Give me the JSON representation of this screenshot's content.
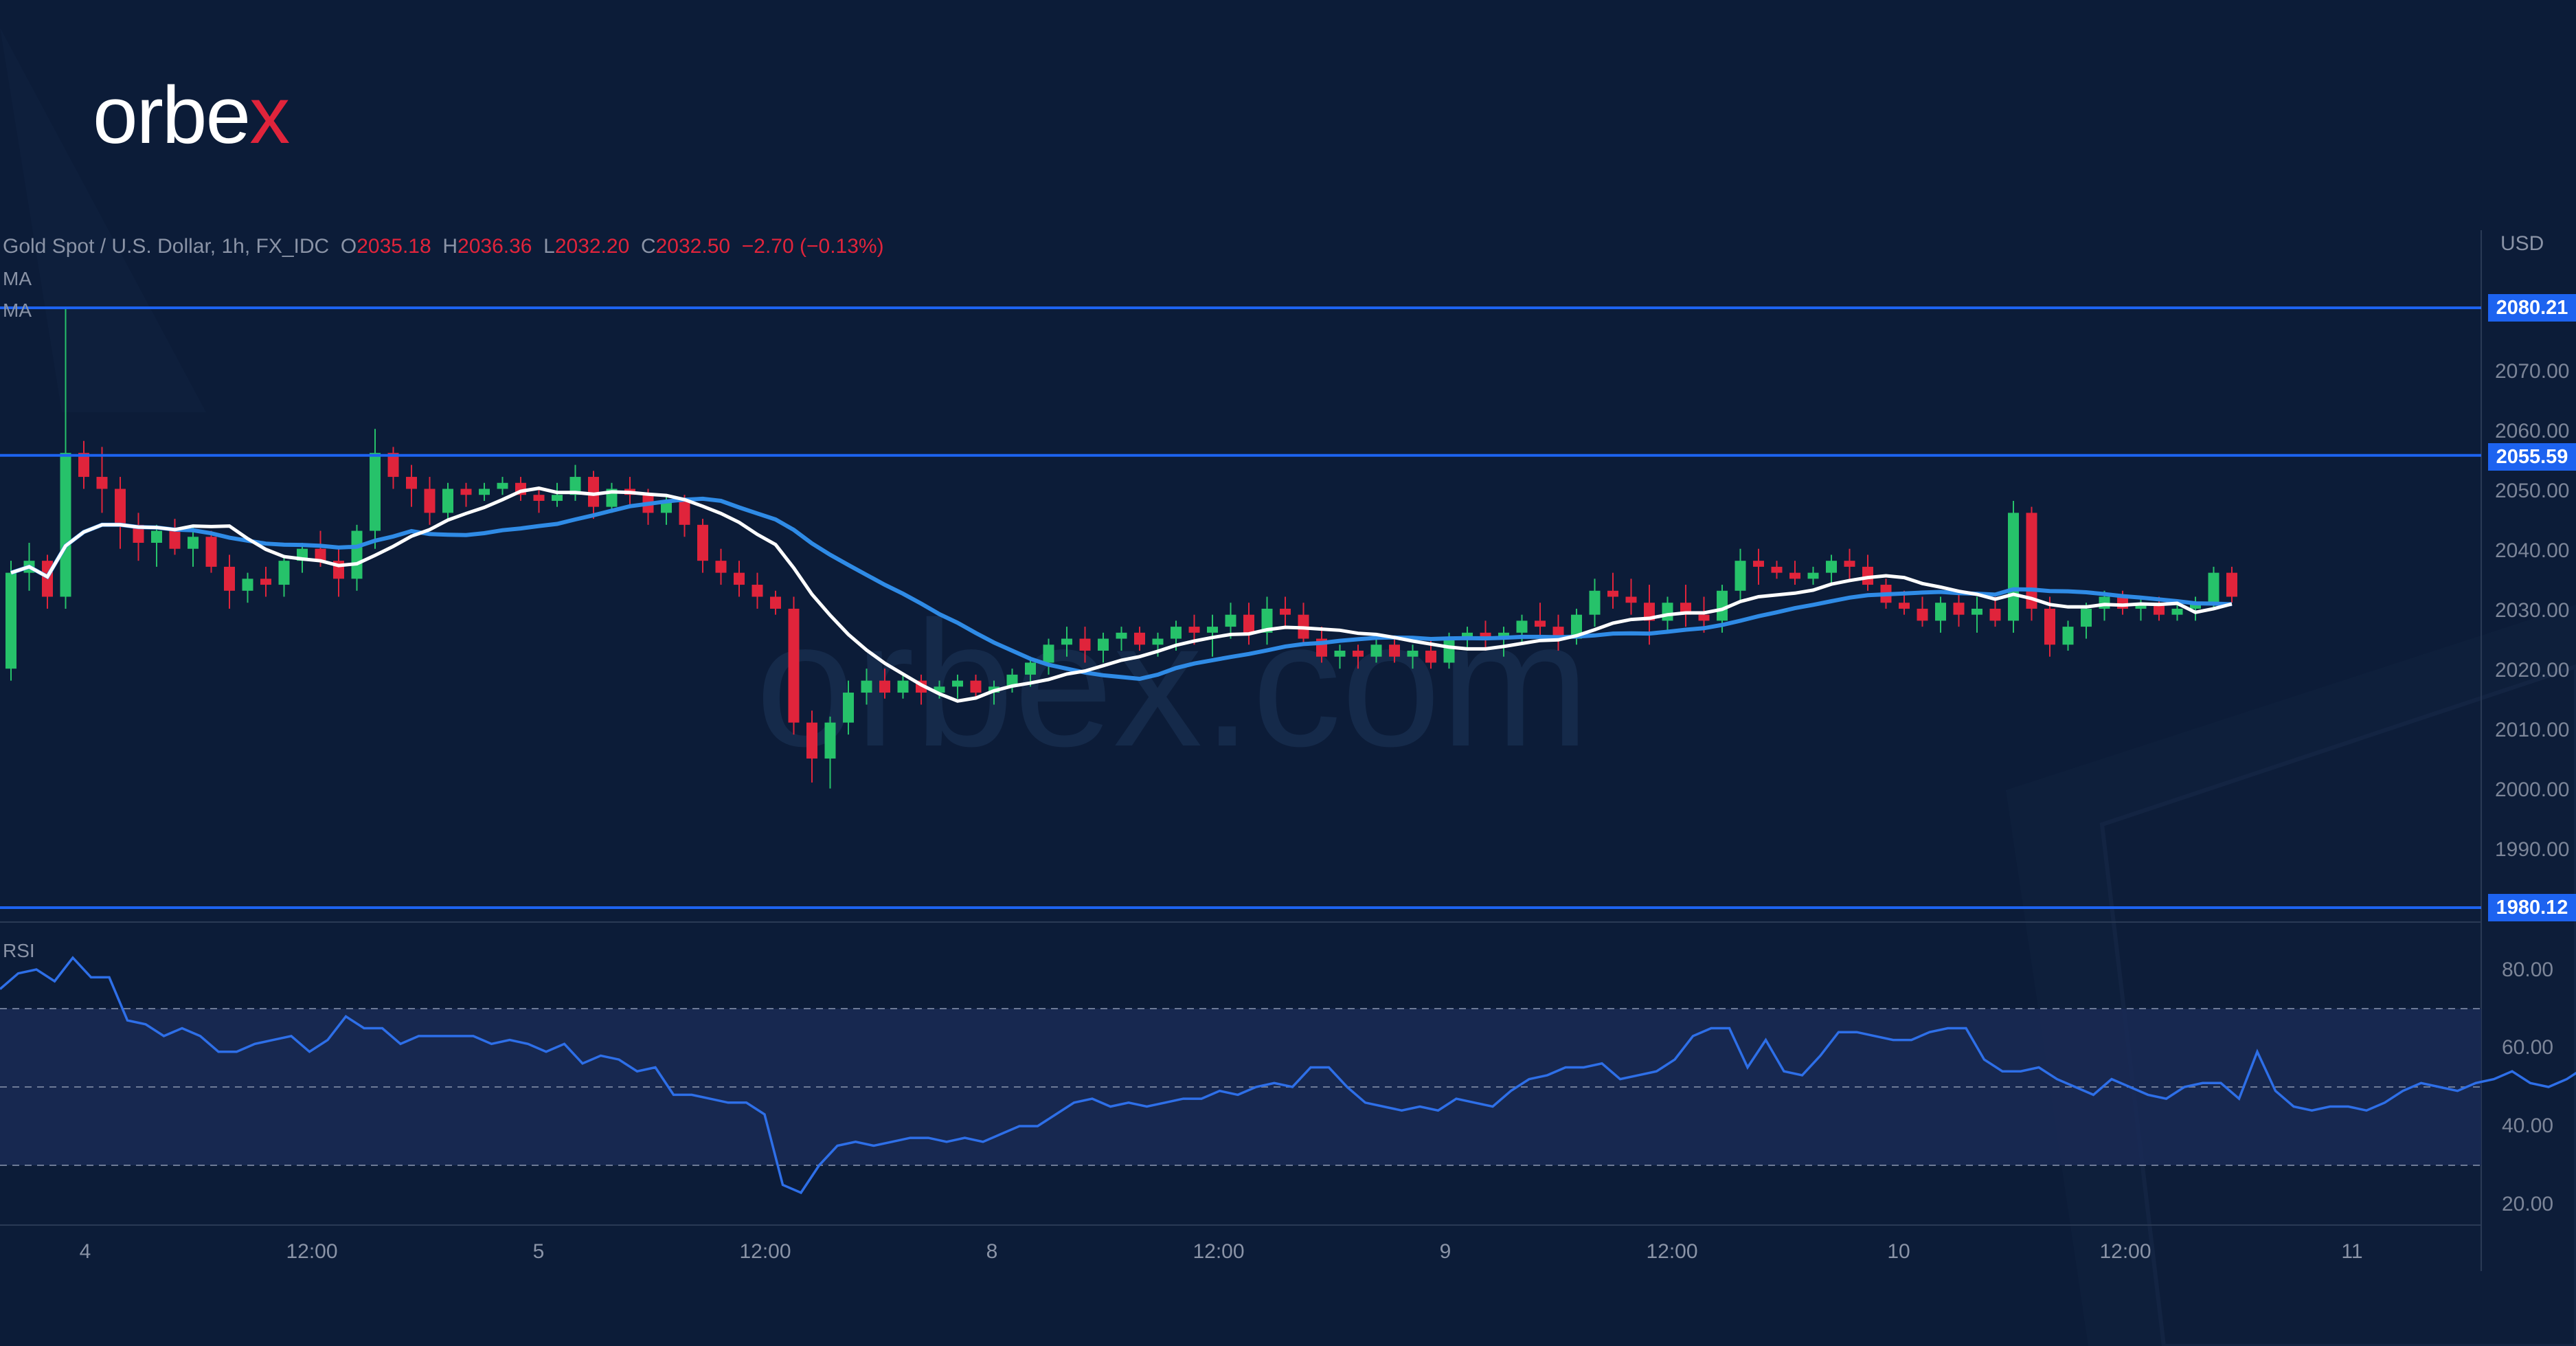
{
  "brand": {
    "logo_main": "orbe",
    "logo_accent": "x",
    "watermark": "orbex.com"
  },
  "legend": {
    "symbol": "Gold Spot / U.S. Dollar, 1h, FX_IDC",
    "open_label": "O",
    "open": "2035.18",
    "high_label": "H",
    "high": "2036.36",
    "low_label": "L",
    "low": "2032.20",
    "close_label": "C",
    "close": "2032.50",
    "change": "−2.70 (−0.13%)",
    "ma1": "MA",
    "ma2": "MA"
  },
  "indicators": {
    "rsi": "RSI"
  },
  "axis": {
    "currency": "USD",
    "price_ticks": [
      "2070.00",
      "2060.00",
      "2050.00",
      "2040.00",
      "2030.00",
      "2020.00",
      "2010.00",
      "2000.00",
      "1990.00"
    ],
    "rsi_ticks": [
      "80.00",
      "60.00",
      "40.00",
      "20.00"
    ],
    "time_ticks": [
      "4",
      "12:00",
      "5",
      "12:00",
      "8",
      "12:00",
      "9",
      "12:00",
      "10",
      "12:00",
      "11"
    ]
  },
  "levels": [
    "2080.21",
    "2055.59",
    "1980.12"
  ],
  "colors": {
    "background": "#0c1c38",
    "up": "#26c26a",
    "down": "#e0243b",
    "ma_fast": "#ffffff",
    "ma_slow": "#2f8be6",
    "level": "#1d63f0",
    "rsi": "#2e6fe8"
  },
  "chart_data": [
    {
      "type": "candlestick",
      "title": "Gold Spot / U.S. Dollar, 1h, FX_IDC",
      "ylabel": "USD",
      "ylim": [
        1975,
        2095
      ],
      "x": [
        "4",
        "12:00",
        "5",
        "12:00",
        "8",
        "12:00",
        "9",
        "12:00",
        "10",
        "12:00",
        "11"
      ],
      "horizontal_levels": [
        2080.21,
        2055.59,
        1980.12
      ],
      "ohlc": [
        [
          2020,
          2038,
          2018,
          2036
        ],
        [
          2036,
          2041,
          2033,
          2038
        ],
        [
          2038,
          2039,
          2030,
          2032
        ],
        [
          2032,
          2080,
          2030,
          2056
        ],
        [
          2056,
          2058,
          2050,
          2052
        ],
        [
          2052,
          2057,
          2046,
          2050
        ],
        [
          2050,
          2052,
          2040,
          2044
        ],
        [
          2044,
          2046,
          2038,
          2041
        ],
        [
          2041,
          2044,
          2037,
          2043
        ],
        [
          2043,
          2045,
          2039,
          2040
        ],
        [
          2040,
          2044,
          2037,
          2042
        ],
        [
          2042,
          2043,
          2036,
          2037
        ],
        [
          2037,
          2039,
          2030,
          2033
        ],
        [
          2033,
          2036,
          2031,
          2035
        ],
        [
          2035,
          2037,
          2032,
          2034
        ],
        [
          2034,
          2039,
          2032,
          2038
        ],
        [
          2038,
          2041,
          2036,
          2040
        ],
        [
          2040,
          2043,
          2037,
          2038
        ],
        [
          2038,
          2040,
          2032,
          2035
        ],
        [
          2035,
          2044,
          2033,
          2043
        ],
        [
          2043,
          2060,
          2040,
          2056
        ],
        [
          2056,
          2057,
          2050,
          2052
        ],
        [
          2052,
          2054,
          2047,
          2050
        ],
        [
          2050,
          2052,
          2044,
          2046
        ],
        [
          2046,
          2051,
          2045,
          2050
        ],
        [
          2050,
          2051,
          2047,
          2049
        ],
        [
          2049,
          2051,
          2048,
          2050
        ],
        [
          2050,
          2052,
          2049,
          2051
        ],
        [
          2051,
          2052,
          2048,
          2049
        ],
        [
          2049,
          2050,
          2046,
          2048
        ],
        [
          2048,
          2051,
          2047,
          2049
        ],
        [
          2049,
          2054,
          2048,
          2052
        ],
        [
          2052,
          2053,
          2045,
          2047
        ],
        [
          2047,
          2051,
          2046,
          2050
        ],
        [
          2050,
          2052,
          2047,
          2049
        ],
        [
          2049,
          2050,
          2044,
          2046
        ],
        [
          2046,
          2049,
          2044,
          2048
        ],
        [
          2048,
          2049,
          2042,
          2044
        ],
        [
          2044,
          2045,
          2036,
          2038
        ],
        [
          2038,
          2040,
          2034,
          2036
        ],
        [
          2036,
          2038,
          2032,
          2034
        ],
        [
          2034,
          2036,
          2030,
          2032
        ],
        [
          2032,
          2033,
          2029,
          2030
        ],
        [
          2030,
          2032,
          2009,
          2011
        ],
        [
          2011,
          2013,
          2001,
          2005
        ],
        [
          2005,
          2012,
          2000,
          2011
        ],
        [
          2011,
          2018,
          2009,
          2016
        ],
        [
          2016,
          2020,
          2014,
          2018
        ],
        [
          2018,
          2020,
          2015,
          2016
        ],
        [
          2016,
          2019,
          2015,
          2018
        ],
        [
          2018,
          2019,
          2014,
          2016
        ],
        [
          2016,
          2018,
          2015,
          2017
        ],
        [
          2017,
          2019,
          2015,
          2018
        ],
        [
          2018,
          2019,
          2015,
          2016
        ],
        [
          2016,
          2018,
          2014,
          2017
        ],
        [
          2017,
          2020,
          2016,
          2019
        ],
        [
          2019,
          2022,
          2017,
          2021
        ],
        [
          2021,
          2025,
          2019,
          2024
        ],
        [
          2024,
          2027,
          2022,
          2025
        ],
        [
          2025,
          2027,
          2021,
          2023
        ],
        [
          2023,
          2026,
          2021,
          2025
        ],
        [
          2025,
          2027,
          2023,
          2026
        ],
        [
          2026,
          2027,
          2023,
          2024
        ],
        [
          2024,
          2026,
          2022,
          2025
        ],
        [
          2025,
          2028,
          2023,
          2027
        ],
        [
          2027,
          2029,
          2024,
          2026
        ],
        [
          2026,
          2029,
          2022,
          2027
        ],
        [
          2027,
          2031,
          2025,
          2029
        ],
        [
          2029,
          2031,
          2024,
          2026
        ],
        [
          2026,
          2032,
          2024,
          2030
        ],
        [
          2030,
          2032,
          2027,
          2029
        ],
        [
          2029,
          2031,
          2024,
          2025
        ],
        [
          2025,
          2027,
          2021,
          2022
        ],
        [
          2022,
          2024,
          2020,
          2023
        ],
        [
          2023,
          2024,
          2020,
          2022
        ],
        [
          2022,
          2025,
          2021,
          2024
        ],
        [
          2024,
          2025,
          2021,
          2022
        ],
        [
          2022,
          2024,
          2020,
          2023
        ],
        [
          2023,
          2025,
          2020,
          2021
        ],
        [
          2021,
          2026,
          2020,
          2025
        ],
        [
          2025,
          2027,
          2023,
          2026
        ],
        [
          2026,
          2028,
          2023,
          2025
        ],
        [
          2025,
          2027,
          2022,
          2026
        ],
        [
          2026,
          2029,
          2024,
          2028
        ],
        [
          2028,
          2031,
          2025,
          2027
        ],
        [
          2027,
          2029,
          2023,
          2025
        ],
        [
          2025,
          2030,
          2024,
          2029
        ],
        [
          2029,
          2035,
          2027,
          2033
        ],
        [
          2033,
          2036,
          2030,
          2032
        ],
        [
          2032,
          2035,
          2029,
          2031
        ],
        [
          2031,
          2034,
          2024,
          2028
        ],
        [
          2028,
          2032,
          2026,
          2031
        ],
        [
          2031,
          2034,
          2027,
          2029
        ],
        [
          2029,
          2032,
          2026,
          2028
        ],
        [
          2028,
          2034,
          2026,
          2033
        ],
        [
          2033,
          2040,
          2031,
          2038
        ],
        [
          2038,
          2040,
          2034,
          2037
        ],
        [
          2037,
          2038,
          2035,
          2036
        ],
        [
          2036,
          2038,
          2034,
          2035
        ],
        [
          2035,
          2037,
          2034,
          2036
        ],
        [
          2036,
          2039,
          2034,
          2038
        ],
        [
          2038,
          2040,
          2035,
          2037
        ],
        [
          2037,
          2039,
          2033,
          2034
        ],
        [
          2034,
          2035,
          2030,
          2031
        ],
        [
          2031,
          2033,
          2029,
          2030
        ],
        [
          2030,
          2032,
          2027,
          2028
        ],
        [
          2028,
          2032,
          2026,
          2031
        ],
        [
          2031,
          2033,
          2027,
          2029
        ],
        [
          2029,
          2032,
          2026,
          2030
        ],
        [
          2030,
          2032,
          2027,
          2028
        ],
        [
          2028,
          2048,
          2026,
          2046
        ],
        [
          2046,
          2047,
          2028,
          2030
        ],
        [
          2030,
          2032,
          2022,
          2024
        ],
        [
          2024,
          2028,
          2023,
          2027
        ],
        [
          2027,
          2031,
          2025,
          2030
        ],
        [
          2030,
          2033,
          2028,
          2032
        ],
        [
          2032,
          2033,
          2029,
          2030
        ],
        [
          2030,
          2032,
          2028,
          2031
        ],
        [
          2031,
          2032,
          2028,
          2029
        ],
        [
          2029,
          2031,
          2028,
          2030
        ],
        [
          2030,
          2032,
          2028,
          2031
        ],
        [
          2031,
          2037,
          2030,
          2036
        ],
        [
          2036,
          2037,
          2031,
          2032
        ]
      ]
    },
    {
      "type": "line",
      "title": "RSI",
      "ylim": [
        15,
        90
      ],
      "guides": [
        30,
        50,
        70
      ],
      "values": [
        75,
        79,
        80,
        77,
        83,
        78,
        78,
        67,
        66,
        63,
        65,
        63,
        59,
        59,
        61,
        62,
        63,
        59,
        62,
        68,
        65,
        65,
        61,
        63,
        63,
        63,
        63,
        61,
        62,
        61,
        59,
        61,
        56,
        58,
        57,
        54,
        55,
        48,
        48,
        47,
        46,
        46,
        43,
        25,
        23,
        30,
        35,
        36,
        35,
        36,
        37,
        37,
        36,
        37,
        36,
        38,
        40,
        40,
        43,
        46,
        47,
        45,
        46,
        45,
        46,
        47,
        47,
        49,
        48,
        50,
        51,
        50,
        55,
        55,
        50,
        46,
        45,
        44,
        45,
        44,
        47,
        46,
        45,
        49,
        52,
        53,
        55,
        55,
        56,
        52,
        53,
        54,
        57,
        63,
        65,
        65,
        55,
        62,
        54,
        53,
        58,
        64,
        64,
        63,
        62,
        62,
        64,
        65,
        65,
        57,
        54,
        54,
        55,
        52,
        50,
        48,
        52,
        50,
        48,
        47,
        50,
        51,
        51,
        47,
        59,
        49,
        45,
        44,
        45,
        45,
        44,
        46,
        49,
        51,
        50,
        49,
        51,
        52,
        54,
        51,
        50,
        52,
        55,
        52
      ]
    }
  ]
}
